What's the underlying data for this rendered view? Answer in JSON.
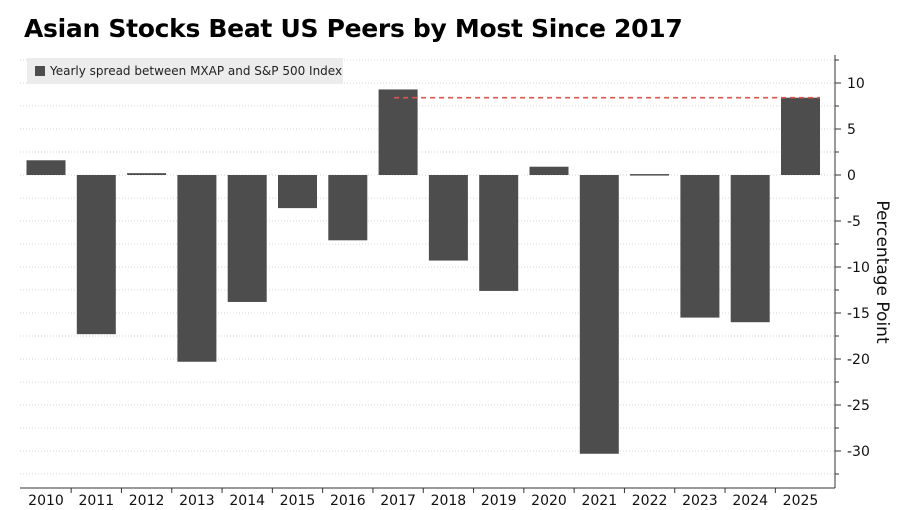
{
  "title": "Asian Stocks Beat US Peers by Most Since 2017",
  "chart_data": {
    "type": "bar",
    "title": "Asian Stocks Beat US Peers by Most Since 2017",
    "categories": [
      "2010",
      "2011",
      "2012",
      "2013",
      "2014",
      "2015",
      "2016",
      "2017",
      "2018",
      "2019",
      "2020",
      "2021",
      "2022",
      "2023",
      "2024",
      "2025"
    ],
    "series": [
      {
        "name": "Yearly spread between MXAP and S&P 500 Index",
        "values": [
          1.6,
          -17.3,
          0.2,
          -20.3,
          -13.8,
          -3.6,
          -7.1,
          9.3,
          -9.3,
          -12.6,
          0.9,
          -30.3,
          0.1,
          -15.5,
          -16.0,
          8.4
        ]
      }
    ],
    "ylabel": "Percentage Point",
    "ylim": [
      -33,
      13
    ],
    "yticks": [
      10,
      5,
      0,
      -5,
      -10,
      -15,
      -20,
      -25,
      -30
    ],
    "y_axis_position": "right",
    "grid": true,
    "legend_position": "top-left",
    "bar_color": "#4d4d4d",
    "reference_line": {
      "from": "2017",
      "to": "2025",
      "value": 8.4,
      "color": "#d9534f",
      "style": "dashed"
    }
  }
}
